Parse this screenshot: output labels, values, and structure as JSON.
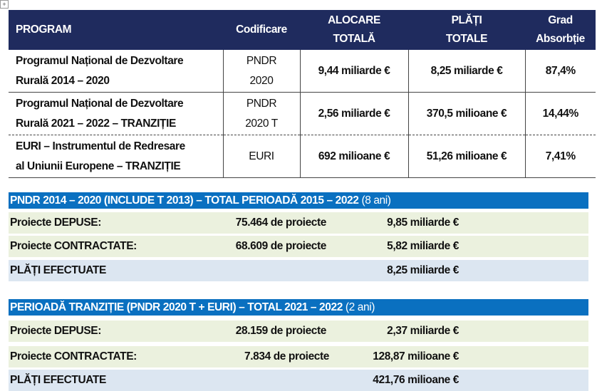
{
  "table": {
    "headers": [
      "PROGRAM",
      "Codificare",
      "ALOCARE TOTALĂ",
      "PLĂȚI TOTALE",
      "Grad Absorbție"
    ],
    "header_lines": [
      [
        "PROGRAM"
      ],
      [
        "Codificare"
      ],
      [
        "ALOCARE",
        "TOTALĂ"
      ],
      [
        "PLĂȚI",
        "TOTALE"
      ],
      [
        "Grad",
        "Absorbție"
      ]
    ],
    "rows": [
      {
        "program": [
          "Programul Național de Dezvoltare",
          "Rurală 2014 – 2020"
        ],
        "code": [
          "PNDR",
          "2020"
        ],
        "alloc": "9,44 miliarde €",
        "paid": "8,25 miliarde €",
        "absorption": "87,4%"
      },
      {
        "program": [
          "Programul Național de Dezvoltare",
          "Rurală 2021 – 2022 – TRANZIȚIE"
        ],
        "code": [
          "PNDR",
          "2020 T"
        ],
        "alloc": "2,56 miliarde €",
        "paid": "370,5 milioane €",
        "absorption": "14,44%"
      },
      {
        "program": [
          "EURI – Instrumentul de Redresare",
          "al Uniunii Europene – TRANZIȚIE"
        ],
        "code": [
          "EURI"
        ],
        "alloc": "692 milioane €",
        "paid": "51,26 milioane €",
        "absorption": "7,41%"
      }
    ]
  },
  "sections": [
    {
      "title": "PNDR 2014 – 2020 (INCLUDE T 2013) – TOTAL PERIOADĂ 2015 – 2022",
      "note": "(8 ani)",
      "rows": [
        {
          "label": "Proiecte DEPUSE:",
          "count": "75.464 de proiecte",
          "value": "9,85 miliarde €"
        },
        {
          "label": "Proiecte CONTRACTATE:",
          "count": "68.609 de proiecte",
          "value": "5,82 miliarde €"
        },
        {
          "label": "PLĂȚI EFECTUATE",
          "count": "",
          "value": "8,25 miliarde €"
        }
      ]
    },
    {
      "title": "PERIOADĂ TRANZIȚIE (PNDR 2020 T + EURI) – TOTAL 2021 – 2022",
      "note": "(2 ani)",
      "rows": [
        {
          "label": "Proiecte DEPUSE:",
          "count": "28.159 de proiecte",
          "value": "2,37 miliarde €"
        },
        {
          "label": "Proiecte CONTRACTATE:",
          "count": "7.834 de proiecte",
          "value": "128,87 milioane €"
        },
        {
          "label": "PLĂȚI EFECTUATE",
          "count": "",
          "value": "421,76 milioane €"
        }
      ]
    }
  ],
  "colors": {
    "header": "#1f2b5e",
    "section": "#0a70c0",
    "green": "#ebf1de",
    "blue": "#dce6f1"
  }
}
